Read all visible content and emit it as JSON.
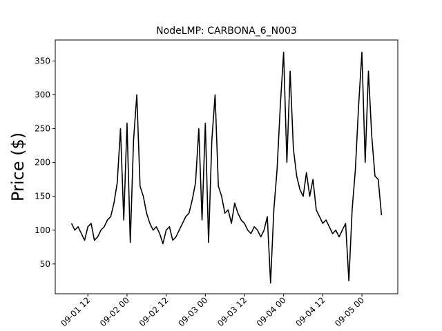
{
  "chart_data": {
    "type": "line",
    "title": "NodeLMP: CARBONA_6_N003",
    "y_label": "Price ($)",
    "x": [
      "09-01 07",
      "09-01 08",
      "09-01 09",
      "09-01 10",
      "09-01 11",
      "09-01 12",
      "09-01 13",
      "09-01 14",
      "09-01 15",
      "09-01 16",
      "09-01 17",
      "09-01 18",
      "09-01 19",
      "09-01 20",
      "09-01 21",
      "09-01 22",
      "09-01 23",
      "09-02 00",
      "09-02 01",
      "09-02 02",
      "09-02 03",
      "09-02 04",
      "09-02 05",
      "09-02 06",
      "09-02 07",
      "09-02 08",
      "09-02 09",
      "09-02 10",
      "09-02 11",
      "09-02 12",
      "09-02 13",
      "09-02 14",
      "09-02 15",
      "09-02 16",
      "09-02 17",
      "09-02 18",
      "09-02 19",
      "09-02 20",
      "09-02 21",
      "09-02 22",
      "09-02 23",
      "09-03 00",
      "09-03 01",
      "09-03 02",
      "09-03 03",
      "09-03 04",
      "09-03 05",
      "09-03 06",
      "09-03 07",
      "09-03 08",
      "09-03 09",
      "09-03 10",
      "09-03 11",
      "09-03 12",
      "09-03 13",
      "09-03 14",
      "09-03 15",
      "09-03 16",
      "09-03 17",
      "09-03 18",
      "09-03 19",
      "09-03 20",
      "09-03 21",
      "09-03 22",
      "09-03 23",
      "09-04 00",
      "09-04 01",
      "09-04 02",
      "09-04 03",
      "09-04 04",
      "09-04 05",
      "09-04 06",
      "09-04 07",
      "09-04 08",
      "09-04 09",
      "09-04 10",
      "09-04 11",
      "09-04 12",
      "09-04 13",
      "09-04 14",
      "09-04 15",
      "09-04 16",
      "09-04 17",
      "09-04 18",
      "09-04 19",
      "09-04 20",
      "09-04 21",
      "09-04 22",
      "09-04 23",
      "09-05 00",
      "09-05 01",
      "09-05 02",
      "09-05 03",
      "09-05 04",
      "09-05 05",
      "09-05 06"
    ],
    "values": [
      110,
      100,
      105,
      95,
      85,
      105,
      110,
      85,
      90,
      100,
      105,
      115,
      120,
      140,
      170,
      250,
      115,
      258,
      82,
      233,
      300,
      165,
      150,
      125,
      110,
      100,
      105,
      95,
      80,
      100,
      105,
      85,
      90,
      100,
      110,
      120,
      125,
      145,
      170,
      250,
      115,
      258,
      82,
      233,
      300,
      165,
      150,
      125,
      130,
      110,
      140,
      125,
      115,
      110,
      100,
      95,
      105,
      100,
      90,
      100,
      120,
      22,
      130,
      190,
      285,
      363,
      200,
      335,
      220,
      180,
      160,
      150,
      185,
      150,
      175,
      130,
      120,
      110,
      115,
      105,
      95,
      100,
      90,
      100,
      110,
      25,
      130,
      190,
      285,
      363,
      200,
      335,
      240,
      180,
      175,
      122
    ],
    "color": "#000000",
    "xlim": [
      "09-01 02",
      "09-05 11"
    ],
    "xticks": [
      "09-01 12",
      "09-02 00",
      "09-02 12",
      "09-03 00",
      "09-03 12",
      "09-04 00",
      "09-04 12",
      "09-05 00"
    ],
    "ylim": [
      6,
      381
    ],
    "yticks": [
      50,
      100,
      150,
      200,
      250,
      300,
      350
    ]
  }
}
